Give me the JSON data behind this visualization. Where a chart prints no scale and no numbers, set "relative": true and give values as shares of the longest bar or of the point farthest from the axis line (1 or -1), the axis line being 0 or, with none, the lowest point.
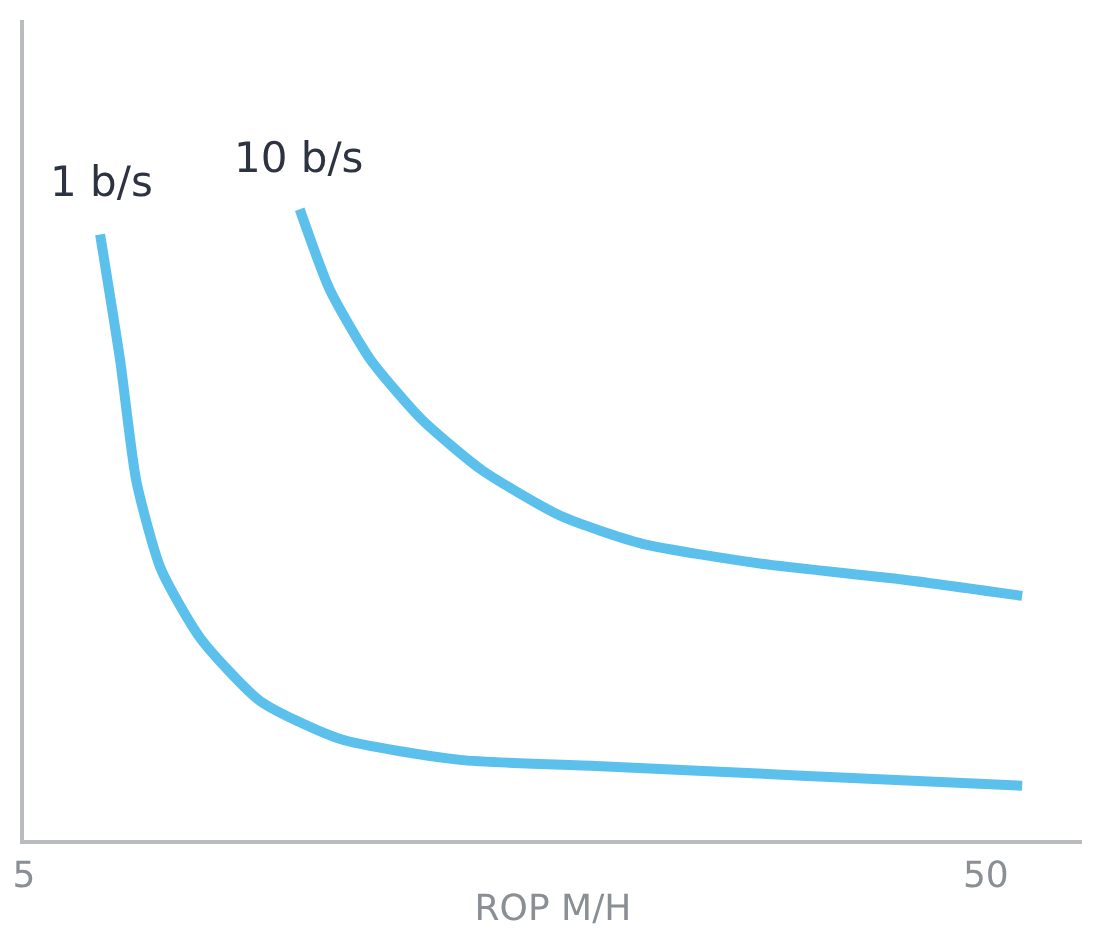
{
  "chart_data": {
    "type": "line",
    "relative": true,
    "xlabel": "ROP M/H",
    "xlim": [
      5,
      54.5
    ],
    "xticks": [
      5,
      50
    ],
    "grid": false,
    "legend": false,
    "marker": "none",
    "line_style": "solid",
    "series": [
      {
        "name": "1 b/s",
        "color": "#5bc0eb",
        "x": [
          8.56,
          9.5,
          10.25,
          11.4,
          13.25,
          16.06,
          19.8,
          25.4,
          32.0,
          41.4,
          51.7
        ],
        "values": [
          0.96,
          0.76,
          0.57,
          0.43,
          0.32,
          0.22,
          0.16,
          0.127,
          0.117,
          0.102,
          0.086
        ]
      },
      {
        "name": "10 b/s",
        "color": "#5bc0eb",
        "x": [
          17.9,
          19.3,
          21.2,
          23.6,
          26.4,
          30.1,
          33.9,
          39.5,
          46.1,
          51.7
        ],
        "values": [
          1.0,
          0.873,
          0.762,
          0.667,
          0.587,
          0.514,
          0.47,
          0.438,
          0.413,
          0.387
        ]
      }
    ]
  }
}
